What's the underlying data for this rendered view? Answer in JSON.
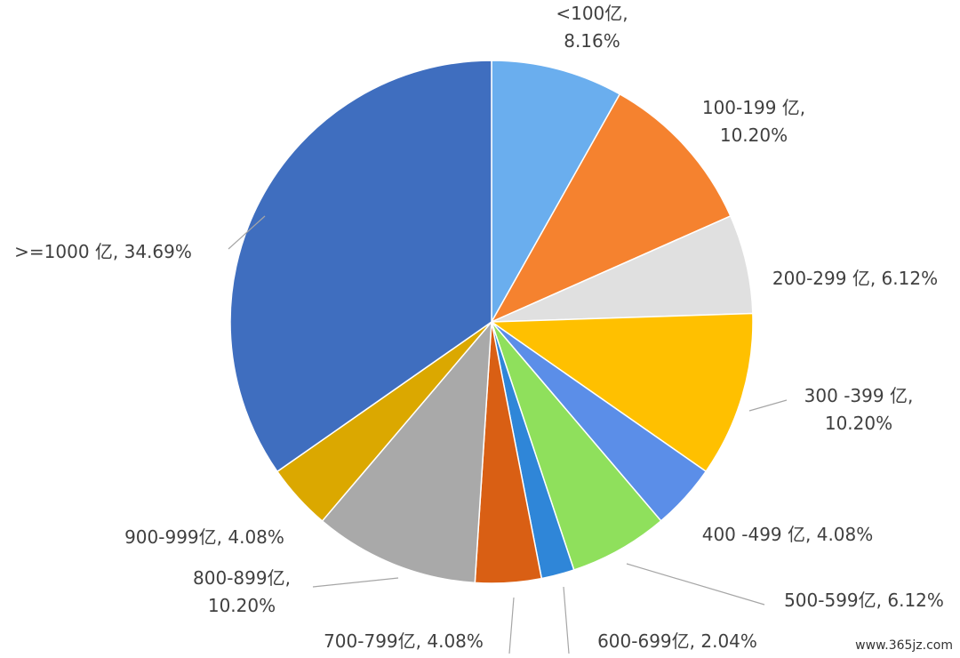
{
  "chart_data": {
    "type": "pie",
    "categories": [
      "<100亿",
      "100-199亿",
      "200-299亿",
      "300-399亿",
      "400-499亿",
      "500-599亿",
      "600-699亿",
      "700-799亿",
      "800-899亿",
      "900-999亿",
      ">=1000亿"
    ],
    "values": [
      8.16,
      10.2,
      6.12,
      10.2,
      4.08,
      6.12,
      2.04,
      4.08,
      10.2,
      4.08,
      34.69
    ],
    "labels": [
      [
        "<100亿,",
        "8.16%"
      ],
      [
        "100-199 亿,",
        "10.20%"
      ],
      [
        "200-299 亿, 6.12%"
      ],
      [
        "300 -399 亿,",
        "10.20%"
      ],
      [
        "400  -499 亿, 4.08%"
      ],
      [
        "500-599亿, 6.12%"
      ],
      [
        "600-699亿, 2.04%"
      ],
      [
        "700-799亿, 4.08%"
      ],
      [
        "800-899亿,",
        "10.20%"
      ],
      [
        "900-999亿, 4.08%"
      ],
      [
        ">=1000 亿, 34.69%"
      ]
    ],
    "colors": [
      "#6aaeee",
      "#f5822f",
      "#e0e0e0",
      "#ffc000",
      "#5b8ee8",
      "#8fe05c",
      "#2f86d8",
      "#d95f14",
      "#a9a9a9",
      "#dba800",
      "#3f6ebf"
    ],
    "start_angle": "12 o'clock",
    "direction": "clockwise",
    "legend": "none",
    "title": ""
  },
  "watermark": "www.365jz.com"
}
